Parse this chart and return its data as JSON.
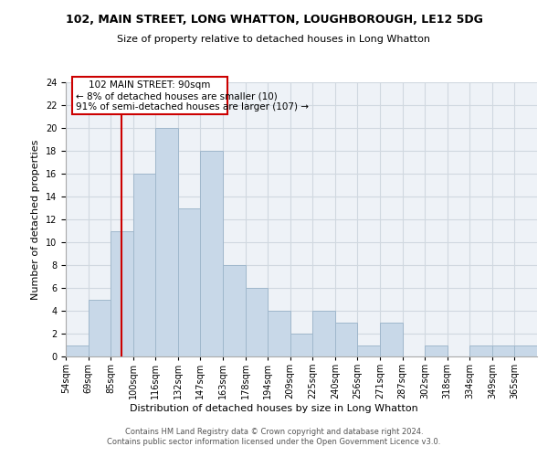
{
  "title": "102, MAIN STREET, LONG WHATTON, LOUGHBOROUGH, LE12 5DG",
  "subtitle": "Size of property relative to detached houses in Long Whatton",
  "xlabel": "Distribution of detached houses by size in Long Whatton",
  "ylabel": "Number of detached properties",
  "footer_line1": "Contains HM Land Registry data © Crown copyright and database right 2024.",
  "footer_line2": "Contains public sector information licensed under the Open Government Licence v3.0.",
  "bin_labels": [
    "54sqm",
    "69sqm",
    "85sqm",
    "100sqm",
    "116sqm",
    "132sqm",
    "147sqm",
    "163sqm",
    "178sqm",
    "194sqm",
    "209sqm",
    "225sqm",
    "240sqm",
    "256sqm",
    "271sqm",
    "287sqm",
    "302sqm",
    "318sqm",
    "334sqm",
    "349sqm",
    "365sqm"
  ],
  "values": [
    1,
    5,
    11,
    16,
    20,
    13,
    18,
    8,
    6,
    4,
    2,
    4,
    3,
    1,
    3,
    0,
    1,
    0,
    1,
    1,
    1
  ],
  "bar_color": "#c8d8e8",
  "bar_edge_color": "#a0b8cc",
  "property_label": "102 MAIN STREET: 90sqm",
  "annotation_line1": "← 8% of detached houses are smaller (10)",
  "annotation_line2": "91% of semi-detached houses are larger (107) →",
  "vline_color": "#cc0000",
  "vline_x_index": 2.5,
  "annotation_box_color": "#cc0000",
  "ylim": [
    0,
    24
  ],
  "yticks": [
    0,
    2,
    4,
    6,
    8,
    10,
    12,
    14,
    16,
    18,
    20,
    22,
    24
  ],
  "grid_color": "#d0d8e0",
  "background_color": "#eef2f7",
  "title_fontsize": 9,
  "subtitle_fontsize": 8,
  "ylabel_fontsize": 8,
  "xlabel_fontsize": 8,
  "tick_fontsize": 7,
  "footer_fontsize": 6,
  "annot_fontsize": 7.5
}
